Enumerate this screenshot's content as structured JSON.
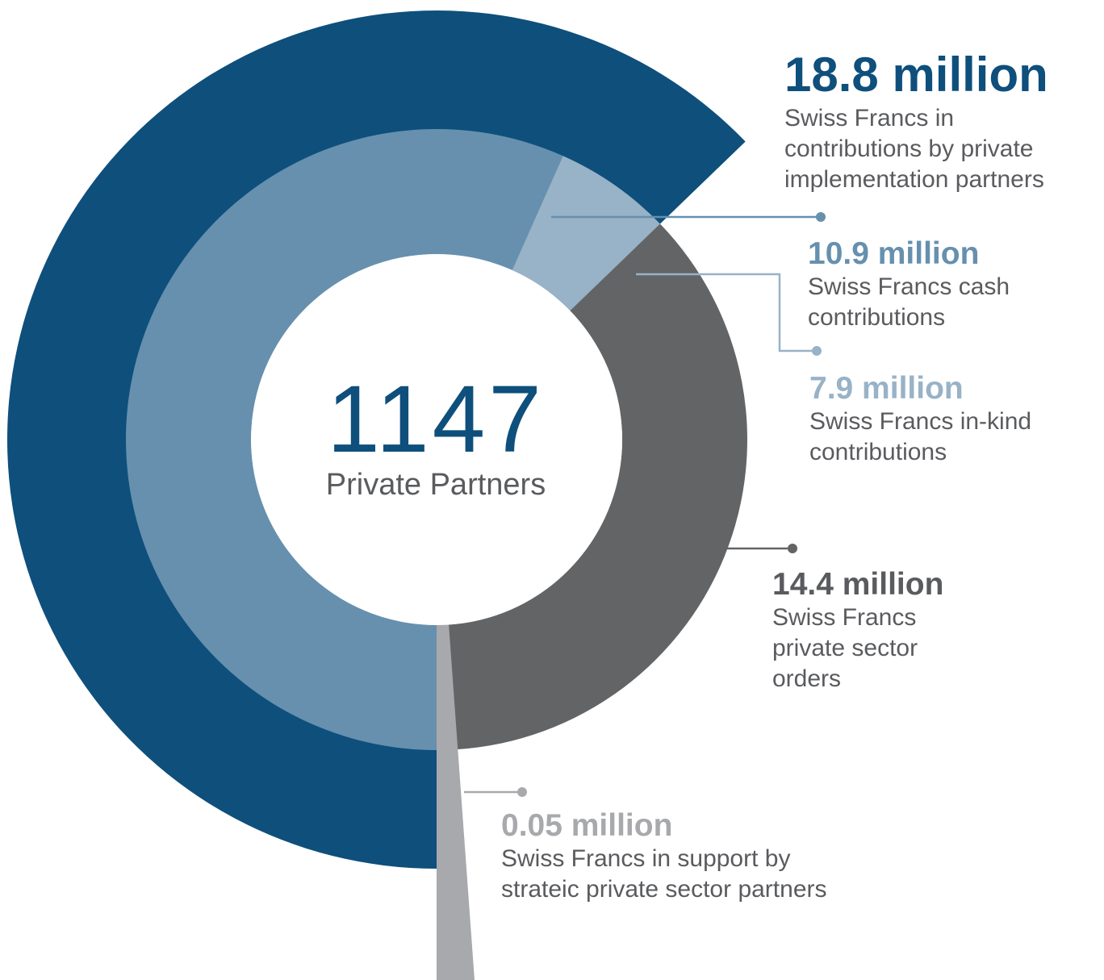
{
  "center": {
    "value": "1147",
    "label": "Private Partners"
  },
  "colors": {
    "implementation": "#0e4f7c",
    "cash": "#6690ae",
    "in_kind": "#98b2c7",
    "orders": "#636466",
    "strategic": "#a8a9ac",
    "text": "#5a5b5e"
  },
  "chart_data": {
    "type": "pie",
    "subtype": "nested-donut",
    "unit": "million Swiss Francs",
    "center_total": {
      "value": 1147,
      "label": "Private Partners"
    },
    "series": [
      {
        "value": 18.8,
        "label": "18.8 million",
        "description": "Swiss Francs in contributions by private implementation partners",
        "color": "#0e4f7c"
      },
      {
        "value": 10.9,
        "label": "10.9 million",
        "description": "Swiss Francs cash contributions",
        "color": "#6690ae"
      },
      {
        "value": 7.9,
        "label": "7.9 million",
        "description": "Swiss Francs in-kind contributions",
        "color": "#98b2c7"
      },
      {
        "value": 14.4,
        "label": "14.4 million",
        "description": "Swiss Francs private sector orders",
        "color": "#636466"
      },
      {
        "value": 0.05,
        "label": "0.05 million",
        "description": "Swiss Francs in support by strateic private sector partners",
        "color": "#a8a9ac"
      }
    ]
  },
  "labels": {
    "implementation": {
      "value": "18.8 million",
      "lines": [
        "Swiss Francs in",
        "contributions by private",
        "implementation partners"
      ]
    },
    "cash": {
      "value": "10.9 million",
      "lines": [
        "Swiss Francs cash",
        "contributions"
      ]
    },
    "in_kind": {
      "value": "7.9 million",
      "lines": [
        "Swiss Francs in-kind",
        "contributions"
      ]
    },
    "orders": {
      "value": "14.4 million",
      "lines": [
        "Swiss Francs",
        "private sector",
        "orders"
      ]
    },
    "strategic": {
      "value": "0.05 million",
      "lines": [
        "Swiss Francs in support by",
        "strateic private sector partners"
      ]
    }
  }
}
